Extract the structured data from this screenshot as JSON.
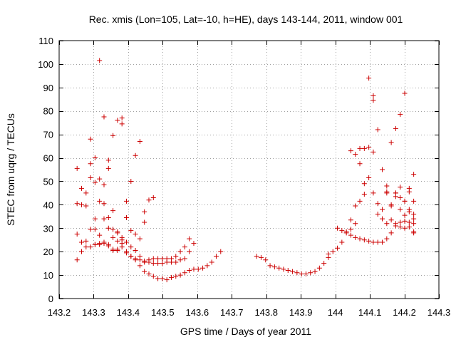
{
  "chart_data": {
    "type": "scatter",
    "title": "Rec. xmis (Lon=105, Lat=-10, h=HE), days 143-144, 2011, window 001",
    "xlabel": "GPS time / Days of year 2011",
    "ylabel": "STEC from uqrg / TECUs",
    "xlim": [
      143.2,
      144.3
    ],
    "ylim": [
      0,
      110
    ],
    "xticks": [
      {
        "value": 143.2,
        "label": "143.2"
      },
      {
        "value": 143.3,
        "label": "143.3"
      },
      {
        "value": 143.4,
        "label": "143.4"
      },
      {
        "value": 143.5,
        "label": "143.5"
      },
      {
        "value": 143.6,
        "label": "143.6"
      },
      {
        "value": 143.7,
        "label": "143.7"
      },
      {
        "value": 143.8,
        "label": "143.8"
      },
      {
        "value": 143.9,
        "label": "143.9"
      },
      {
        "value": 144.0,
        "label": "144"
      },
      {
        "value": 144.1,
        "label": "144.1"
      },
      {
        "value": 144.2,
        "label": "144.2"
      },
      {
        "value": 144.3,
        "label": "144.3"
      }
    ],
    "yticks": [
      {
        "value": 0,
        "label": "0"
      },
      {
        "value": 10,
        "label": "10"
      },
      {
        "value": 20,
        "label": "20"
      },
      {
        "value": 30,
        "label": "30"
      },
      {
        "value": 40,
        "label": "40"
      },
      {
        "value": 50,
        "label": "50"
      },
      {
        "value": 60,
        "label": "60"
      },
      {
        "value": 70,
        "label": "70"
      },
      {
        "value": 80,
        "label": "80"
      },
      {
        "value": 90,
        "label": "90"
      },
      {
        "value": 100,
        "label": "100"
      },
      {
        "value": 110,
        "label": "110"
      }
    ],
    "grid": true,
    "marker": "+",
    "marker_color": "#cc0000",
    "grid_color": "#a0a0a0",
    "series": [
      {
        "points": [
          [
            143.252,
            55.5
          ],
          [
            143.265,
            47
          ],
          [
            143.278,
            45
          ],
          [
            143.291,
            68
          ],
          [
            143.304,
            60
          ],
          [
            143.317,
            101.5
          ],
          [
            143.33,
            77.5
          ],
          [
            143.343,
            59
          ],
          [
            143.356,
            69.5
          ],
          [
            143.369,
            76
          ],
          [
            143.382,
            74.5
          ],
          [
            143.395,
            41.5
          ],
          [
            143.408,
            50
          ],
          [
            143.421,
            61
          ],
          [
            143.434,
            67
          ],
          [
            143.447,
            37
          ],
          [
            143.46,
            42
          ],
          [
            143.473,
            43
          ],
          [
            143.252,
            40.5
          ],
          [
            143.265,
            40
          ],
          [
            143.278,
            39.5
          ],
          [
            143.291,
            57.5
          ],
          [
            143.304,
            49.5
          ],
          [
            143.317,
            51
          ],
          [
            143.33,
            48.5
          ],
          [
            143.343,
            55.5
          ],
          [
            143.356,
            37.5
          ],
          [
            143.369,
            24.5
          ],
          [
            143.382,
            77
          ],
          [
            143.395,
            34.5
          ],
          [
            143.408,
            29
          ],
          [
            143.421,
            27.5
          ],
          [
            143.434,
            25.5
          ],
          [
            143.447,
            32.5
          ],
          [
            143.252,
            27.5
          ],
          [
            143.265,
            24
          ],
          [
            143.278,
            24.5
          ],
          [
            143.291,
            51.5
          ],
          [
            143.304,
            34
          ],
          [
            143.317,
            41.5
          ],
          [
            143.33,
            40.5
          ],
          [
            143.343,
            34.5
          ],
          [
            143.356,
            29.5
          ],
          [
            143.369,
            28.5
          ],
          [
            143.382,
            23.5
          ],
          [
            143.395,
            19.5
          ],
          [
            143.408,
            18
          ],
          [
            143.421,
            17
          ],
          [
            143.434,
            16.5
          ],
          [
            143.447,
            16
          ],
          [
            143.46,
            16.5
          ],
          [
            143.473,
            17
          ],
          [
            143.486,
            17
          ],
          [
            143.499,
            17
          ],
          [
            143.512,
            17
          ],
          [
            143.525,
            17
          ],
          [
            143.538,
            18
          ],
          [
            143.551,
            20
          ],
          [
            143.564,
            22
          ],
          [
            143.577,
            25.5
          ],
          [
            143.252,
            16.5
          ],
          [
            143.265,
            20
          ],
          [
            143.278,
            22
          ],
          [
            143.291,
            22
          ],
          [
            143.304,
            23
          ],
          [
            143.317,
            23.5
          ],
          [
            143.33,
            24
          ],
          [
            143.343,
            22.5
          ],
          [
            143.356,
            21
          ],
          [
            143.369,
            21
          ],
          [
            143.382,
            22
          ],
          [
            143.395,
            20
          ],
          [
            143.408,
            18
          ],
          [
            143.421,
            16.5
          ],
          [
            143.434,
            14
          ],
          [
            143.447,
            11.5
          ],
          [
            143.46,
            10.5
          ],
          [
            143.473,
            9.5
          ],
          [
            143.486,
            8.5
          ],
          [
            143.499,
            8.5
          ],
          [
            143.512,
            8
          ],
          [
            143.525,
            9
          ],
          [
            143.538,
            9.5
          ],
          [
            143.551,
            10
          ],
          [
            143.564,
            11
          ],
          [
            143.577,
            12
          ],
          [
            143.59,
            12.5
          ],
          [
            143.603,
            12.5
          ],
          [
            143.616,
            13
          ],
          [
            143.629,
            14
          ],
          [
            143.642,
            15.5
          ],
          [
            143.655,
            18
          ],
          [
            143.668,
            20
          ],
          [
            143.291,
            29.5
          ],
          [
            143.304,
            29.5
          ],
          [
            143.317,
            27
          ],
          [
            143.33,
            34
          ],
          [
            143.343,
            30
          ],
          [
            143.356,
            26
          ],
          [
            143.369,
            28
          ],
          [
            143.382,
            25
          ],
          [
            143.395,
            24
          ],
          [
            143.408,
            22
          ],
          [
            143.421,
            20.5
          ],
          [
            143.434,
            18
          ],
          [
            143.447,
            15.5
          ],
          [
            143.46,
            15.5
          ],
          [
            143.473,
            15
          ],
          [
            143.486,
            15
          ],
          [
            143.499,
            15
          ],
          [
            143.512,
            15.5
          ],
          [
            143.525,
            15.5
          ],
          [
            143.538,
            15.5
          ],
          [
            143.551,
            16.5
          ],
          [
            143.564,
            17
          ],
          [
            143.577,
            20
          ],
          [
            143.59,
            23.5
          ],
          [
            143.304,
            23
          ],
          [
            143.317,
            23
          ],
          [
            143.33,
            23.5
          ],
          [
            143.343,
            23
          ],
          [
            143.356,
            20.5
          ],
          [
            143.369,
            20.5
          ],
          [
            143.382,
            26
          ],
          [
            143.395,
            24
          ],
          [
            143.772,
            18
          ],
          [
            143.785,
            17.5
          ],
          [
            143.798,
            16.5
          ],
          [
            143.811,
            14
          ],
          [
            143.824,
            13.5
          ],
          [
            143.837,
            13
          ],
          [
            143.85,
            12.5
          ],
          [
            143.863,
            12
          ],
          [
            143.876,
            11.5
          ],
          [
            143.889,
            11
          ],
          [
            143.902,
            10.5
          ],
          [
            143.915,
            10.5
          ],
          [
            143.928,
            11
          ],
          [
            143.941,
            11.5
          ],
          [
            143.954,
            13
          ],
          [
            143.967,
            15
          ],
          [
            143.98,
            17.5
          ],
          [
            143.993,
            20
          ],
          [
            143.98,
            19
          ],
          [
            144.006,
            21.5
          ],
          [
            144.019,
            24
          ],
          [
            144.032,
            28.5
          ],
          [
            144.045,
            29.5
          ],
          [
            144.058,
            32
          ],
          [
            144.071,
            41.5
          ],
          [
            144.084,
            44.5
          ],
          [
            144.097,
            51.5
          ],
          [
            144.11,
            62.5
          ],
          [
            144.123,
            72
          ],
          [
            144.136,
            55
          ],
          [
            144.149,
            48
          ],
          [
            144.162,
            39.5
          ],
          [
            144.175,
            72.5
          ],
          [
            144.188,
            78.5
          ],
          [
            144.201,
            87.5
          ],
          [
            144.214,
            47
          ],
          [
            144.227,
            53
          ],
          [
            144.006,
            30
          ],
          [
            144.019,
            29
          ],
          [
            144.032,
            28
          ],
          [
            144.045,
            33.5
          ],
          [
            144.058,
            39.5
          ],
          [
            144.071,
            57.5
          ],
          [
            144.084,
            64
          ],
          [
            144.097,
            94
          ],
          [
            144.11,
            86.5
          ],
          [
            144.123,
            40.5
          ],
          [
            144.136,
            38
          ],
          [
            144.149,
            45.5
          ],
          [
            144.162,
            66.5
          ],
          [
            144.175,
            45
          ],
          [
            144.188,
            47.5
          ],
          [
            144.201,
            41.5
          ],
          [
            144.214,
            45.5
          ],
          [
            144.227,
            36
          ],
          [
            144.045,
            63
          ],
          [
            144.058,
            61.5
          ],
          [
            144.071,
            64
          ],
          [
            144.084,
            49
          ],
          [
            144.097,
            64.5
          ],
          [
            144.11,
            84.5
          ],
          [
            144.123,
            36
          ],
          [
            144.136,
            34
          ],
          [
            144.149,
            45
          ],
          [
            144.162,
            40
          ],
          [
            144.175,
            43.5
          ],
          [
            144.188,
            43
          ],
          [
            144.201,
            41.5
          ],
          [
            144.214,
            37
          ],
          [
            144.227,
            34
          ],
          [
            144.045,
            27
          ],
          [
            144.058,
            26
          ],
          [
            144.071,
            25.5
          ],
          [
            144.084,
            25
          ],
          [
            144.097,
            24.5
          ],
          [
            144.11,
            24
          ],
          [
            144.123,
            24
          ],
          [
            144.136,
            24
          ],
          [
            144.149,
            25.5
          ],
          [
            144.162,
            28
          ],
          [
            144.175,
            31
          ],
          [
            144.188,
            30.5
          ],
          [
            144.201,
            30
          ],
          [
            144.214,
            30.5
          ],
          [
            144.227,
            28
          ],
          [
            144.11,
            45
          ],
          [
            144.149,
            32
          ],
          [
            144.162,
            33.5
          ],
          [
            144.175,
            32
          ],
          [
            144.188,
            32.5
          ],
          [
            144.201,
            33
          ],
          [
            144.214,
            32.5
          ],
          [
            144.227,
            32
          ],
          [
            144.175,
            45
          ],
          [
            144.188,
            38
          ],
          [
            144.201,
            35.5
          ],
          [
            144.214,
            38
          ],
          [
            144.227,
            41.5
          ],
          [
            144.227,
            28.5
          ]
        ]
      }
    ]
  }
}
